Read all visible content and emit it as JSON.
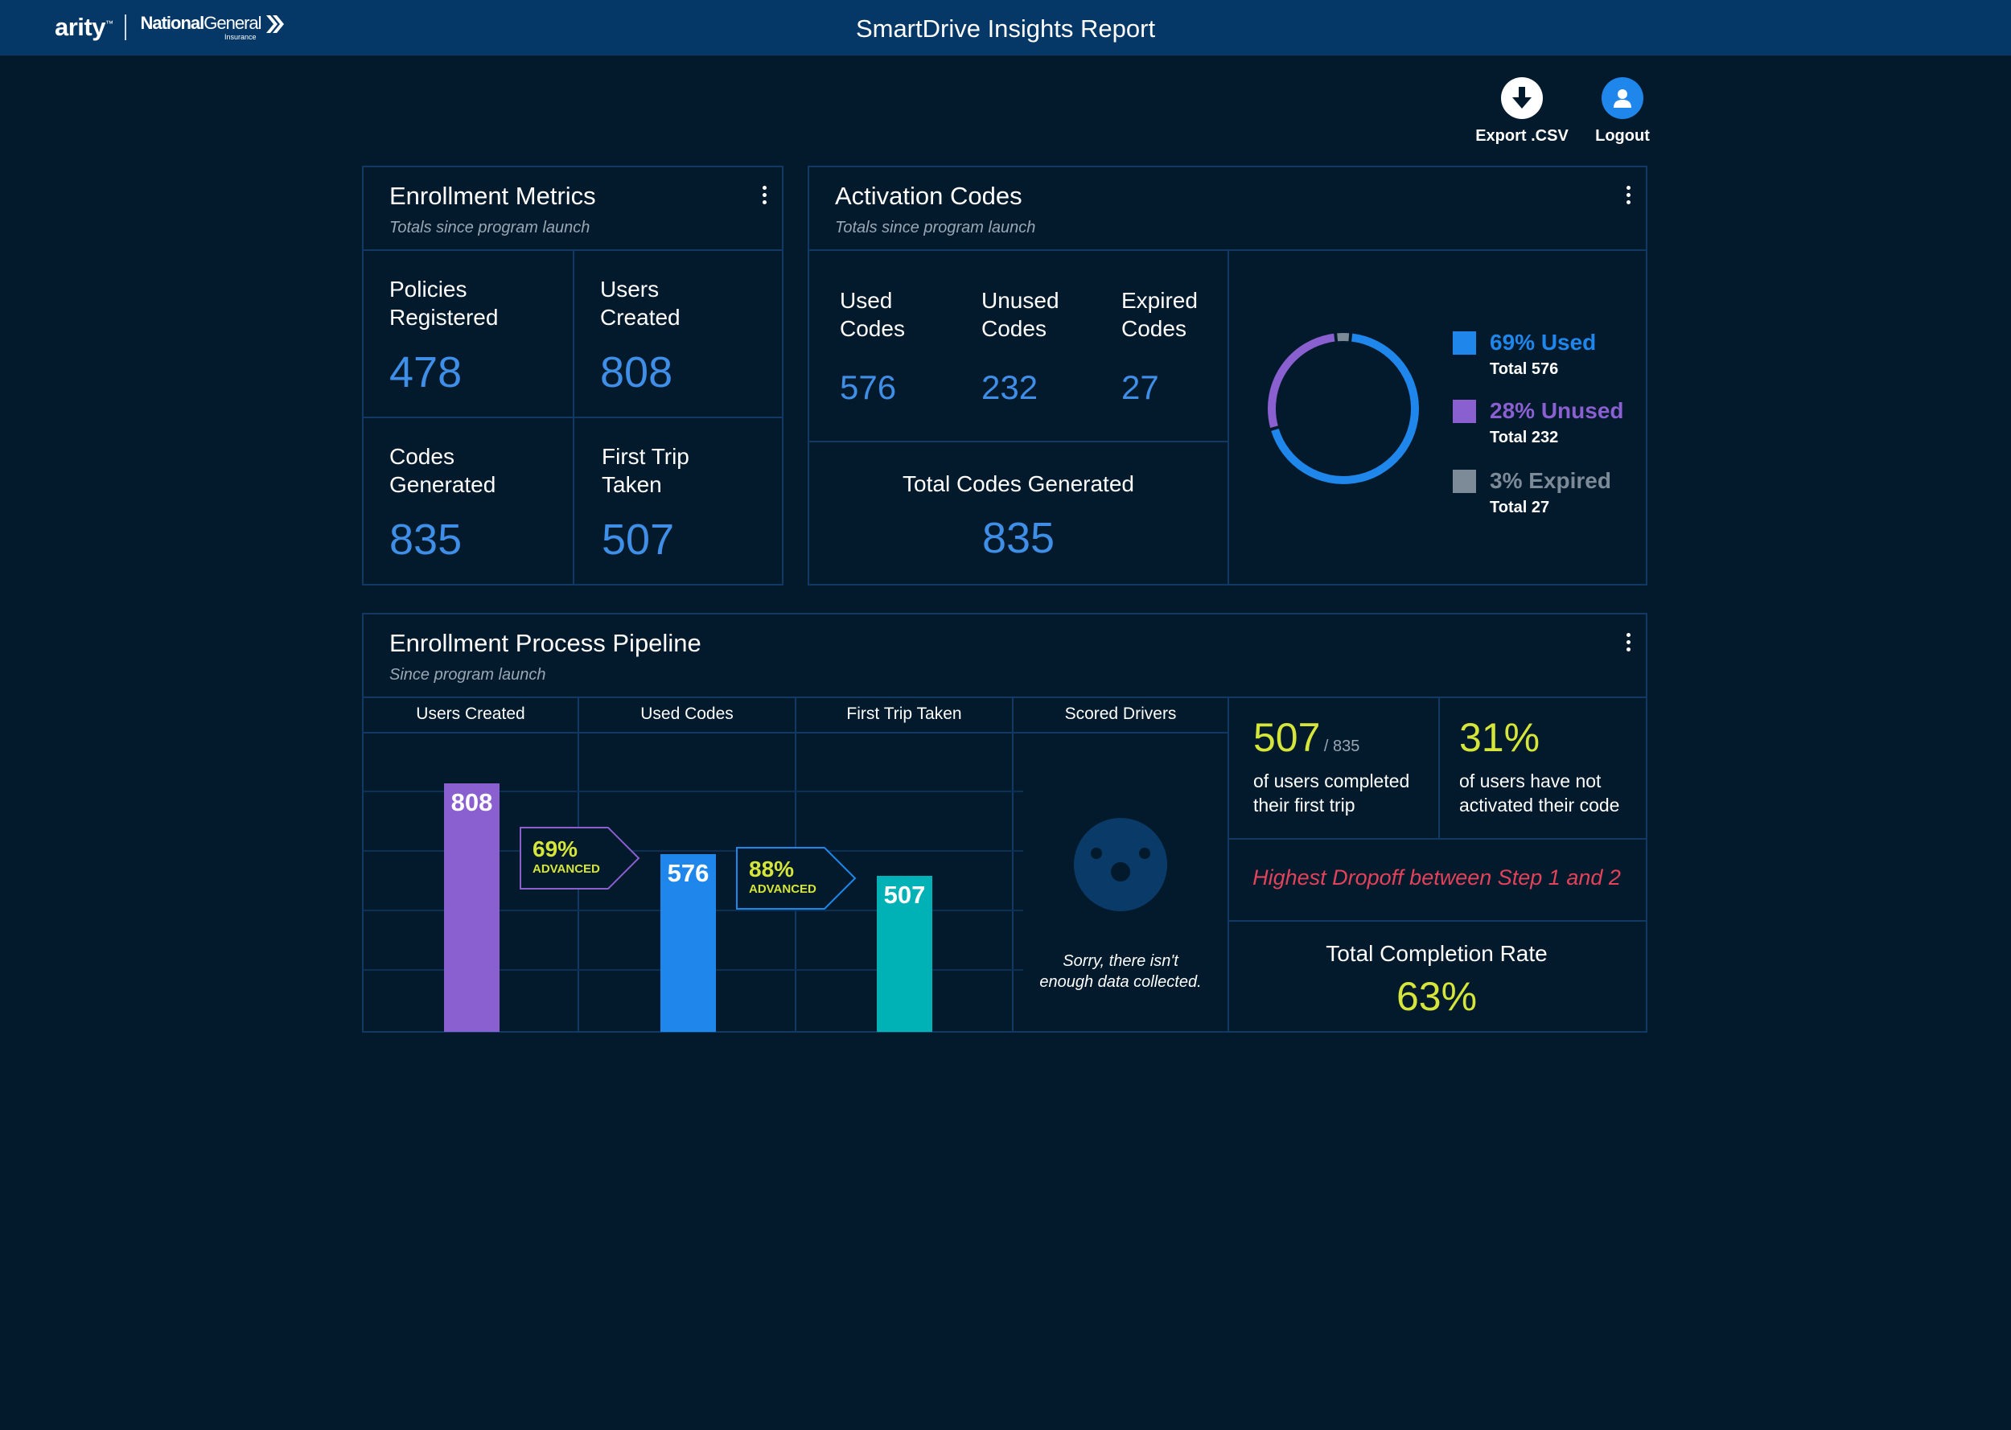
{
  "header": {
    "brand_arity": "arity",
    "brand_arity_tm": "™",
    "brand_ng_bold": "National",
    "brand_ng_light": "General",
    "brand_ng_sub": "Insurance",
    "title": "SmartDrive Insights Report"
  },
  "actions": {
    "export_label": "Export .CSV",
    "logout_label": "Logout"
  },
  "enrollment": {
    "title": "Enrollment Metrics",
    "subtitle": "Totals since program launch",
    "metrics": [
      {
        "label_1": "Policies",
        "label_2": "Registered",
        "value": "478"
      },
      {
        "label_1": "Users",
        "label_2": "Created",
        "value": "808"
      },
      {
        "label_1": "Codes",
        "label_2": "Generated",
        "value": "835"
      },
      {
        "label_1": "First Trip",
        "label_2": "Taken",
        "value": "507"
      }
    ]
  },
  "activation": {
    "title": "Activation Codes",
    "subtitle": "Totals since program launch",
    "codes": [
      {
        "label_1": "Used",
        "label_2": "Codes",
        "value": "576"
      },
      {
        "label_1": "Unused",
        "label_2": "Codes",
        "value": "232"
      },
      {
        "label_1": "Expired",
        "label_2": "Codes",
        "value": "27"
      }
    ],
    "total_label": "Total Codes Generated",
    "total_value": "835",
    "legend": [
      {
        "text": "69% Used",
        "total": "Total 576",
        "color": "#1f87eb"
      },
      {
        "text": "28% Unused",
        "total": "Total 232",
        "color": "#8a5fd0"
      },
      {
        "text": "3% Expired",
        "total": "Total 27",
        "color": "#7d8a97"
      }
    ]
  },
  "pipeline": {
    "title": "Enrollment Process Pipeline",
    "subtitle": "Since program launch",
    "columns": [
      "Users Created",
      "Used Codes",
      "First Trip Taken",
      "Scored Drivers"
    ],
    "advanced_word": "ADVANCED",
    "advanced": [
      "69%",
      "88%"
    ],
    "no_data_1": "Sorry, there isn't",
    "no_data_2": "enough data collected.",
    "completed_value": "507",
    "completed_of": "/ 835",
    "completed_line_1": "of users completed",
    "completed_line_2": "their first trip",
    "not_activated_value": "31%",
    "not_activated_line_1": "of users have not",
    "not_activated_line_2": "activated their code",
    "dropoff": "Highest Dropoff between Step 1 and 2",
    "completion_label": "Total Completion Rate",
    "completion_value": "63%"
  },
  "chart_data": [
    {
      "type": "pie",
      "labels": [
        "Used",
        "Unused",
        "Expired"
      ],
      "values": [
        576,
        232,
        27
      ],
      "colors": [
        "#1f87eb",
        "#8a5fd0",
        "#7d8a97"
      ]
    },
    {
      "type": "bar",
      "categories": [
        "Users Created",
        "Used Codes",
        "First Trip Taken"
      ],
      "values": [
        808,
        576,
        507
      ],
      "colors": [
        "#8a5fd0",
        "#1f87eb",
        "#00b1b6"
      ],
      "ylim": [
        0,
        1000
      ]
    }
  ],
  "colors": {
    "background": "#021a2c",
    "header": "#053866",
    "accent_blue": "#3f8fe8",
    "accent_yellow": "#d6e53a",
    "alert_red": "#e2435b"
  },
  "icons": {
    "export": "download-arrow-icon",
    "logout": "user-icon",
    "menu": "kebab-menu-icon",
    "no_data": "sad-face-icon"
  }
}
